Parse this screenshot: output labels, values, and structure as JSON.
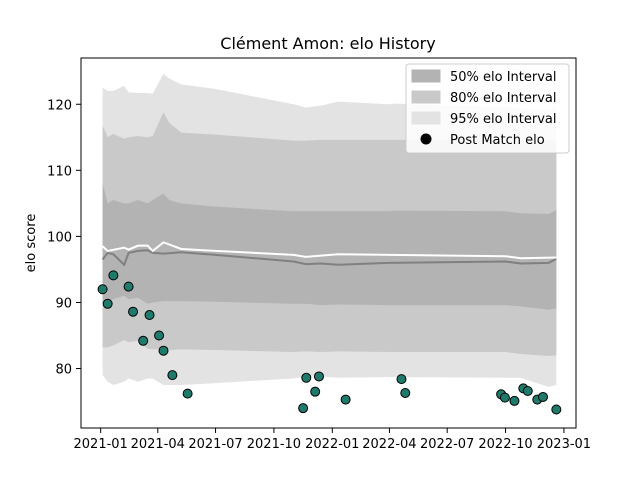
{
  "chart_data": {
    "type": "area",
    "title": "Clément Amon: elo History",
    "xlabel": "",
    "ylabel": "elo score",
    "xlim": [
      "2020-12-01",
      "2023-01-20"
    ],
    "ylim": [
      71,
      127
    ],
    "grid": false,
    "legend_position": "top-right",
    "x_ticks": [
      {
        "value": "2021-01-01",
        "label": "2021-01"
      },
      {
        "value": "2021-04-01",
        "label": "2021-04"
      },
      {
        "value": "2021-07-01",
        "label": "2021-07"
      },
      {
        "value": "2021-10-01",
        "label": "2021-10"
      },
      {
        "value": "2022-01-01",
        "label": "2022-01"
      },
      {
        "value": "2022-04-01",
        "label": "2022-04"
      },
      {
        "value": "2022-07-01",
        "label": "2022-07"
      },
      {
        "value": "2022-10-01",
        "label": "2022-10"
      },
      {
        "value": "2023-01-01",
        "label": "2023-01"
      }
    ],
    "y_ticks": [
      80,
      90,
      100,
      110,
      120
    ],
    "legend": [
      {
        "label": "50% elo Interval",
        "kind": "band",
        "color": "#b3b3b3"
      },
      {
        "label": "80% elo Interval",
        "kind": "band",
        "color": "#c9c9c9"
      },
      {
        "label": "95% elo Interval",
        "kind": "band",
        "color": "#e3e3e3"
      },
      {
        "label": "Post Match elo",
        "kind": "marker",
        "color": "#000000"
      }
    ],
    "bands": {
      "x": [
        "2021-01-04",
        "2021-01-12",
        "2021-01-21",
        "2021-02-07",
        "2021-02-14",
        "2021-03-01",
        "2021-03-16",
        "2021-03-24",
        "2021-04-10",
        "2021-04-19",
        "2021-05-08",
        "2021-07-01",
        "2021-11-01",
        "2021-11-20",
        "2021-12-14",
        "2022-01-10",
        "2022-04-01",
        "2022-04-11",
        "2022-10-01",
        "2022-10-25",
        "2022-12-08",
        "2022-12-20"
      ],
      "series": [
        {
          "name": "95% elo Interval",
          "color": "#e3e3e3",
          "upper": [
            122.5,
            122.0,
            122.0,
            122.8,
            121.8,
            121.7,
            121.7,
            121.6,
            124.6,
            123.9,
            123.0,
            122.3,
            120.0,
            119.5,
            119.8,
            120.4,
            120.0,
            120.1,
            119.6,
            119.3,
            119.2,
            119.8
          ],
          "lower": [
            79.0,
            78.0,
            77.5,
            78.0,
            78.5,
            78.0,
            78.5,
            78.5,
            77.5,
            77.5,
            77.5,
            77.8,
            78.5,
            78.8,
            78.8,
            78.6,
            78.7,
            78.7,
            78.6,
            78.6,
            77.2,
            77.5
          ]
        },
        {
          "name": "80% elo Interval",
          "color": "#c9c9c9",
          "upper": [
            116.8,
            115.0,
            115.5,
            114.8,
            115.0,
            115.2,
            115.0,
            115.2,
            118.8,
            117.2,
            115.7,
            115.4,
            114.5,
            114.5,
            114.6,
            114.6,
            114.6,
            114.6,
            114.6,
            114.3,
            114.6,
            114.5
          ],
          "lower": [
            83.2,
            83.2,
            83.5,
            84.3,
            84.0,
            84.2,
            83.0,
            82.9,
            83.0,
            82.8,
            82.9,
            82.8,
            82.5,
            82.6,
            82.5,
            82.6,
            82.5,
            82.5,
            82.5,
            82.2,
            81.9,
            82.0
          ],
          "transparent": true
        },
        {
          "name": "50% elo Interval",
          "color": "#b3b3b3",
          "upper": [
            108.0,
            105.0,
            105.5,
            105.0,
            105.0,
            105.5,
            105.0,
            105.5,
            106.5,
            105.5,
            105.0,
            104.5,
            103.8,
            103.8,
            103.8,
            103.8,
            103.8,
            103.9,
            103.8,
            103.5,
            103.4,
            104.0
          ],
          "lower": [
            90.2,
            90.2,
            90.5,
            91.0,
            90.5,
            90.7,
            89.8,
            90.0,
            90.2,
            90.2,
            90.2,
            90.1,
            89.8,
            89.8,
            89.6,
            89.7,
            89.6,
            89.6,
            89.6,
            89.4,
            88.9,
            89.1
          ]
        }
      ]
    },
    "lines": [
      {
        "name": "mean",
        "color": "#808080",
        "x": [
          "2021-01-04",
          "2021-01-12",
          "2021-01-21",
          "2021-02-07",
          "2021-02-14",
          "2021-03-01",
          "2021-03-16",
          "2021-03-24",
          "2021-04-10",
          "2021-05-08",
          "2021-07-01",
          "2021-11-01",
          "2021-11-20",
          "2021-12-14",
          "2022-01-10",
          "2022-04-01",
          "2022-10-01",
          "2022-10-25",
          "2022-12-08",
          "2022-12-20"
        ],
        "y": [
          96.5,
          97.5,
          97.3,
          95.7,
          97.5,
          97.8,
          97.9,
          97.5,
          97.4,
          97.6,
          97.2,
          96.2,
          95.8,
          95.9,
          95.7,
          96.0,
          96.2,
          95.9,
          96.0,
          96.6
        ]
      },
      {
        "name": "estimate",
        "color": "#ffffff",
        "x": [
          "2021-01-04",
          "2021-01-12",
          "2021-02-07",
          "2021-02-14",
          "2021-03-01",
          "2021-03-16",
          "2021-03-24",
          "2021-04-10",
          "2021-05-08",
          "2021-07-01",
          "2021-11-01",
          "2021-11-20",
          "2022-01-10",
          "2022-04-01",
          "2022-10-01",
          "2022-10-25",
          "2022-12-20"
        ],
        "y": [
          98.5,
          97.8,
          98.3,
          98.0,
          98.6,
          98.6,
          97.8,
          99.1,
          98.1,
          97.8,
          97.2,
          96.9,
          97.3,
          97.2,
          97.0,
          96.7,
          96.8
        ]
      }
    ],
    "points": {
      "name": "Post Match elo",
      "x": [
        "2021-01-04",
        "2021-01-12",
        "2021-01-21",
        "2021-02-14",
        "2021-02-21",
        "2021-03-09",
        "2021-03-19",
        "2021-04-03",
        "2021-04-10",
        "2021-04-24",
        "2021-05-18",
        "2021-11-16",
        "2021-11-21",
        "2021-12-05",
        "2021-12-11",
        "2022-01-22",
        "2022-04-20",
        "2022-04-26",
        "2022-09-24",
        "2022-09-30",
        "2022-10-15",
        "2022-10-29",
        "2022-11-05",
        "2022-11-20",
        "2022-11-29",
        "2022-12-20"
      ],
      "y": [
        92.0,
        89.8,
        94.1,
        92.4,
        88.6,
        84.2,
        88.1,
        85.0,
        82.7,
        79.0,
        76.2,
        74.0,
        78.6,
        76.5,
        78.8,
        75.3,
        78.4,
        76.3,
        76.1,
        75.6,
        75.1,
        77.0,
        76.6,
        75.3,
        75.7,
        73.8
      ],
      "fill": "#1e7a6a",
      "stroke": "#000000"
    }
  }
}
